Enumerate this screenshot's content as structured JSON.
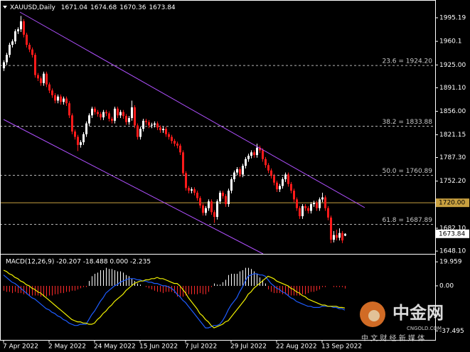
{
  "chart_data": {
    "type": "candlestick",
    "symbol": "XAUUSD,Daily",
    "up_color": "#ffffff",
    "down_color": "#ff1a1a",
    "ylim": [
      1644,
      2021.6
    ],
    "yticks": [
      1995.19,
      1960.1,
      {
        "value": 1925,
        "label": "1925.00"
      },
      {
        "value": 1891.1,
        "label": "1891.10"
      },
      {
        "value": 1856,
        "label": "1856.00"
      },
      1821.15,
      {
        "value": 1787.3,
        "label": "1787.30"
      },
      {
        "value": 1752.2,
        "label": "1752.20"
      },
      {
        "value": 1682.1,
        "label": "1682.10"
      },
      {
        "value": 1648.1,
        "label": "1648.10"
      }
    ],
    "categories": [
      "7 Apr 2022",
      null,
      null,
      null,
      null,
      null,
      null,
      null,
      null,
      null,
      null,
      null,
      null,
      null,
      null,
      null,
      "2 May 2022",
      null,
      null,
      null,
      null,
      null,
      null,
      null,
      null,
      null,
      null,
      null,
      null,
      null,
      null,
      null,
      "24 May 2022",
      null,
      null,
      null,
      null,
      null,
      null,
      null,
      null,
      null,
      null,
      null,
      null,
      null,
      null,
      null,
      "15 Jun 2022",
      null,
      null,
      null,
      null,
      null,
      null,
      null,
      null,
      null,
      null,
      null,
      null,
      null,
      null,
      null,
      "7 Jul 2022",
      null,
      null,
      null,
      null,
      null,
      null,
      null,
      null,
      null,
      null,
      null,
      null,
      null,
      null,
      null,
      "29 Jul 2022",
      null,
      null,
      null,
      null,
      null,
      null,
      null,
      null,
      null,
      null,
      null,
      null,
      null,
      null,
      null,
      "22 Aug 2022",
      null,
      null,
      null,
      null,
      null,
      null,
      null,
      null,
      null,
      null,
      null,
      null,
      null,
      null,
      null,
      "13 Sep 2022",
      null,
      null,
      null,
      null,
      null,
      null,
      null,
      null
    ],
    "candles": [
      [
        1920,
        1932,
        1916,
        1929
      ],
      [
        1929,
        1943,
        1925,
        1940
      ],
      [
        1940,
        1958,
        1936,
        1955
      ],
      [
        1955,
        1963,
        1951,
        1960
      ],
      [
        1960,
        1978,
        1956,
        1975
      ],
      [
        1975,
        1981,
        1971,
        1978
      ],
      [
        1978,
        1998,
        1974,
        1990
      ],
      [
        1990,
        1993,
        1966,
        1970
      ],
      [
        1970,
        1973,
        1951,
        1955
      ],
      [
        1955,
        1958,
        1944,
        1948
      ],
      [
        1948,
        1951,
        1936,
        1940
      ],
      [
        1940,
        1943,
        1906,
        1910
      ],
      [
        1910,
        1913,
        1901,
        1905
      ],
      [
        1905,
        1908,
        1894,
        1898
      ],
      [
        1898,
        1915,
        1894,
        1912
      ],
      [
        1912,
        1915,
        1892,
        1896
      ],
      [
        1896,
        1899,
        1883,
        1887
      ],
      [
        1887,
        1890,
        1876,
        1880
      ],
      [
        1880,
        1883,
        1868,
        1872
      ],
      [
        1872,
        1881,
        1868,
        1878
      ],
      [
        1878,
        1881,
        1866,
        1870
      ],
      [
        1870,
        1878,
        1866,
        1875
      ],
      [
        1875,
        1878,
        1864,
        1868
      ],
      [
        1868,
        1871,
        1846,
        1850
      ],
      [
        1850,
        1853,
        1822,
        1826
      ],
      [
        1826,
        1829,
        1814,
        1818
      ],
      [
        1818,
        1821,
        1797,
        1806
      ],
      [
        1806,
        1813,
        1802,
        1810
      ],
      [
        1810,
        1825,
        1806,
        1822
      ],
      [
        1822,
        1841,
        1818,
        1838
      ],
      [
        1838,
        1853,
        1834,
        1850
      ],
      [
        1850,
        1863,
        1846,
        1860
      ],
      [
        1860,
        1863,
        1851,
        1855
      ],
      [
        1855,
        1858,
        1848,
        1852
      ],
      [
        1852,
        1855,
        1843,
        1847
      ],
      [
        1847,
        1858,
        1843,
        1855
      ],
      [
        1855,
        1858,
        1849,
        1853
      ],
      [
        1853,
        1856,
        1841,
        1845
      ],
      [
        1845,
        1848,
        1838,
        1842
      ],
      [
        1842,
        1863,
        1838,
        1860
      ],
      [
        1860,
        1863,
        1846,
        1850
      ],
      [
        1850,
        1858,
        1846,
        1855
      ],
      [
        1855,
        1858,
        1845,
        1849
      ],
      [
        1849,
        1852,
        1836,
        1840
      ],
      [
        1840,
        1849,
        1836,
        1846
      ],
      [
        1846,
        1872,
        1842,
        1862
      ],
      [
        1862,
        1865,
        1831,
        1835
      ],
      [
        1835,
        1838,
        1814,
        1818
      ],
      [
        1818,
        1833,
        1814,
        1830
      ],
      [
        1830,
        1845,
        1826,
        1842
      ],
      [
        1842,
        1845,
        1836,
        1840
      ],
      [
        1840,
        1843,
        1831,
        1835
      ],
      [
        1835,
        1839,
        1831,
        1836
      ],
      [
        1836,
        1841,
        1832,
        1838
      ],
      [
        1838,
        1841,
        1828,
        1832
      ],
      [
        1832,
        1835,
        1824,
        1828
      ],
      [
        1828,
        1833,
        1824,
        1830
      ],
      [
        1830,
        1833,
        1818,
        1822
      ],
      [
        1822,
        1825,
        1814,
        1818
      ],
      [
        1818,
        1821,
        1808,
        1812
      ],
      [
        1812,
        1815,
        1804,
        1808
      ],
      [
        1808,
        1811,
        1801,
        1805
      ],
      [
        1805,
        1808,
        1791,
        1795
      ],
      [
        1795,
        1798,
        1760,
        1764
      ],
      [
        1764,
        1767,
        1738,
        1742
      ],
      [
        1742,
        1745,
        1734,
        1738
      ],
      [
        1738,
        1743,
        1734,
        1740
      ],
      [
        1740,
        1743,
        1731,
        1735
      ],
      [
        1735,
        1738,
        1723,
        1727
      ],
      [
        1727,
        1730,
        1712,
        1716
      ],
      [
        1716,
        1719,
        1701,
        1705
      ],
      [
        1705,
        1715,
        1701,
        1712
      ],
      [
        1712,
        1725,
        1708,
        1722
      ],
      [
        1722,
        1725,
        1702,
        1706
      ],
      [
        1706,
        1709,
        1690,
        1699
      ],
      [
        1699,
        1725,
        1695,
        1722
      ],
      [
        1722,
        1738,
        1718,
        1735
      ],
      [
        1735,
        1738,
        1726,
        1730
      ],
      [
        1730,
        1733,
        1714,
        1718
      ],
      [
        1718,
        1741,
        1714,
        1738
      ],
      [
        1738,
        1758,
        1734,
        1755
      ],
      [
        1755,
        1768,
        1751,
        1765
      ],
      [
        1765,
        1773,
        1761,
        1770
      ],
      [
        1770,
        1773,
        1758,
        1762
      ],
      [
        1762,
        1778,
        1758,
        1775
      ],
      [
        1775,
        1788,
        1771,
        1785
      ],
      [
        1785,
        1793,
        1781,
        1790
      ],
      [
        1790,
        1798,
        1786,
        1795
      ],
      [
        1795,
        1798,
        1787,
        1791
      ],
      [
        1791,
        1808,
        1787,
        1802
      ],
      [
        1802,
        1805,
        1794,
        1798
      ],
      [
        1798,
        1801,
        1781,
        1785
      ],
      [
        1785,
        1788,
        1772,
        1776
      ],
      [
        1776,
        1779,
        1764,
        1768
      ],
      [
        1768,
        1771,
        1756,
        1760
      ],
      [
        1760,
        1763,
        1746,
        1750
      ],
      [
        1750,
        1753,
        1736,
        1740
      ],
      [
        1740,
        1748,
        1736,
        1745
      ],
      [
        1745,
        1758,
        1741,
        1755
      ],
      [
        1755,
        1765,
        1751,
        1762
      ],
      [
        1762,
        1765,
        1744,
        1748
      ],
      [
        1748,
        1751,
        1734,
        1738
      ],
      [
        1738,
        1741,
        1721,
        1725
      ],
      [
        1725,
        1728,
        1708,
        1712
      ],
      [
        1712,
        1715,
        1696,
        1700
      ],
      [
        1700,
        1718,
        1696,
        1715
      ],
      [
        1715,
        1718,
        1708,
        1712
      ],
      [
        1712,
        1715,
        1704,
        1708
      ],
      [
        1708,
        1721,
        1704,
        1718
      ],
      [
        1718,
        1723,
        1714,
        1720
      ],
      [
        1720,
        1723,
        1708,
        1712
      ],
      [
        1712,
        1728,
        1708,
        1725
      ],
      [
        1725,
        1735,
        1721,
        1728
      ],
      [
        1728,
        1731,
        1708,
        1712
      ],
      [
        1712,
        1715,
        1694,
        1698
      ],
      [
        1698,
        1701,
        1660,
        1665
      ],
      [
        1665,
        1678,
        1661,
        1672
      ],
      [
        1672,
        1680,
        1664,
        1668
      ],
      [
        1668,
        1682,
        1664,
        1675
      ],
      [
        1675,
        1678,
        1660,
        1664
      ],
      [
        1671.04,
        1674.68,
        1670.36,
        1673.84
      ]
    ],
    "fib_levels": [
      {
        "label": "23.6 = 1924.20",
        "value": 1924.2
      },
      {
        "label": "38.2 = 1833.88",
        "value": 1833.88
      },
      {
        "label": "50.0 = 1760.89",
        "value": 1760.89
      },
      {
        "label": "61.8 = 1687.89",
        "value": 1687.89
      }
    ],
    "hline": {
      "value": 1720,
      "label": "1720.00",
      "color": "#c8a040"
    },
    "macd": {
      "title": "MACD(12,26,9) -20.207 -18.488 0.000 -2.235",
      "ylim": [
        -45,
        26
      ],
      "yticks": [
        19.959,
        {
          "value": 0,
          "label": "0.00"
        },
        -37.495
      ],
      "histogram": {
        "up_color": "#ffffff",
        "down_color": "#ff2a2a",
        "values": [
          -4,
          -5,
          -5,
          -6,
          -5,
          -6,
          -6,
          -7,
          -7,
          -8,
          -8,
          -8,
          -8,
          -9,
          -9,
          -9,
          -8,
          -8,
          -7,
          -7,
          -6,
          -6,
          -5,
          -5,
          -4,
          -4,
          -3,
          -2,
          -1,
          -1,
          4,
          8,
          10,
          11,
          13,
          13,
          15,
          14,
          14,
          13,
          12,
          12,
          11,
          9,
          8,
          6,
          4,
          2,
          1,
          0,
          -1,
          -2,
          -3,
          -4,
          -5,
          -5,
          -6,
          -5,
          -5,
          -5,
          -6,
          -9,
          -9,
          -9,
          -8,
          -7,
          -7,
          -7,
          -7,
          -6,
          -7,
          -7,
          -5,
          -1,
          2,
          1,
          1,
          3,
          5,
          9,
          10,
          10,
          10,
          12,
          13,
          15,
          15,
          14,
          12,
          10,
          7,
          5,
          2,
          -3,
          -5,
          -6,
          -6,
          -6,
          -7,
          -7,
          -8,
          -8,
          -8,
          -8,
          -8,
          -7,
          -7,
          -6,
          -5,
          -5,
          -4,
          -3,
          -1,
          -1,
          0,
          0,
          -1,
          -1,
          -1,
          -1,
          -2.235
        ]
      },
      "series": [
        {
          "color": "#1e5cff",
          "values": [
            9,
            7,
            5,
            3,
            2,
            0,
            -2,
            -4,
            -6,
            -8,
            -10,
            -11,
            -13,
            -15,
            -17,
            -19,
            -20,
            -22,
            -23,
            -25,
            -26,
            -28,
            -29,
            -31,
            -32,
            -33,
            -33,
            -32,
            -32,
            -32,
            -28,
            -24,
            -21,
            -17,
            -13,
            -10,
            -6,
            -4,
            -2,
            0,
            1,
            3,
            4,
            5,
            6,
            6,
            6,
            5,
            5,
            4,
            4,
            3,
            3,
            2,
            2,
            1,
            0,
            0,
            -1,
            -2,
            -4,
            -7,
            -9,
            -12,
            -14,
            -17,
            -20,
            -23,
            -26,
            -29,
            -32,
            -35,
            -35,
            -34,
            -33,
            -33,
            -32,
            -29,
            -25,
            -20,
            -16,
            -13,
            -10,
            -5,
            -1,
            4,
            8,
            9,
            10,
            10,
            9,
            9,
            8,
            5,
            2,
            0,
            -2,
            -3,
            -5,
            -6,
            -8,
            -10,
            -11,
            -13,
            -14,
            -15,
            -16,
            -17,
            -17,
            -18,
            -18,
            -18,
            -17,
            -17,
            -17,
            -17,
            -18,
            -18,
            -19,
            -19,
            -20.207
          ]
        },
        {
          "color": "#f0f000",
          "values": [
            13,
            12,
            10,
            9,
            7,
            6,
            4,
            3,
            1,
            0,
            -2,
            -3,
            -5,
            -6,
            -8,
            -10,
            -12,
            -14,
            -16,
            -18,
            -20,
            -22,
            -24,
            -26,
            -28,
            -29,
            -30,
            -30,
            -31,
            -31,
            -32,
            -32,
            -31,
            -28,
            -26,
            -23,
            -21,
            -18,
            -16,
            -13,
            -11,
            -9,
            -7,
            -4,
            -2,
            0,
            2,
            3,
            4,
            4,
            5,
            5,
            6,
            6,
            7,
            6,
            6,
            5,
            4,
            3,
            2,
            2,
            0,
            -3,
            -6,
            -10,
            -13,
            -16,
            -19,
            -23,
            -25,
            -28,
            -30,
            -33,
            -35,
            -34,
            -33,
            -32,
            -30,
            -29,
            -26,
            -23,
            -20,
            -17,
            -14,
            -11,
            -7,
            -5,
            -2,
            0,
            2,
            4,
            6,
            8,
            7,
            6,
            4,
            3,
            2,
            1,
            0,
            -2,
            -3,
            -5,
            -6,
            -8,
            -9,
            -11,
            -12,
            -13,
            -14,
            -15,
            -16,
            -16,
            -17,
            -17,
            -17,
            -17,
            -18,
            -18,
            -18.488
          ]
        }
      ]
    },
    "watermark": {
      "name": "中金网",
      "site": "CNGOLD.COM",
      "slogan": "中 文 财 经 新 媒 体"
    }
  }
}
